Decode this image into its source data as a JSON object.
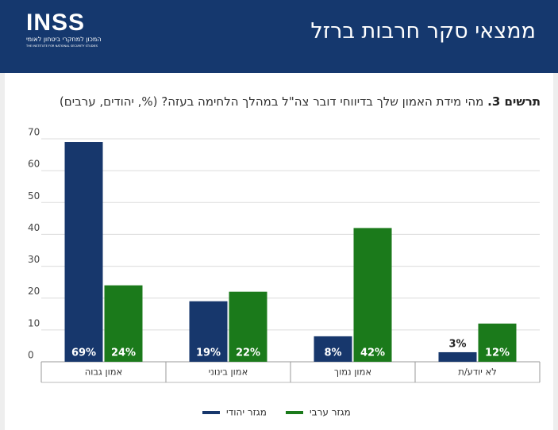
{
  "header": {
    "title": "ממצאי סקר חרבות ברזל",
    "logo": {
      "mark": "INSS",
      "hebrew": "המכון למחקרי ביטחון לאומי",
      "english": "THE INSTITUTE FOR NATIONAL SECURITY STUDIES"
    }
  },
  "chart_data": {
    "type": "bar",
    "title_label": "תרשים 3.",
    "title": "מהי מידת האמון שלך בדיווחי דובר צה\"ל במהלך הלחימה בעזה? (%, יהודים, ערבים)",
    "categories": [
      "אמון גבוה",
      "אמון בינוני",
      "אמון נמוך",
      "לא יודע/ת"
    ],
    "series": [
      {
        "name": "מגזר יהודי",
        "color": "#17376c",
        "values": [
          69,
          19,
          8,
          3
        ],
        "value_labels": [
          "69%",
          "19%",
          "8%",
          "3%"
        ]
      },
      {
        "name": "מגזר ערבי",
        "color": "#1b7a1b",
        "values": [
          24,
          22,
          42,
          12
        ],
        "value_labels": [
          "24%",
          "22%",
          "42%",
          "12%"
        ]
      }
    ],
    "ylim": [
      0,
      70
    ],
    "yticks": [
      0,
      10,
      20,
      30,
      40,
      50,
      60,
      70
    ],
    "grid": true,
    "legend": "bottom"
  }
}
